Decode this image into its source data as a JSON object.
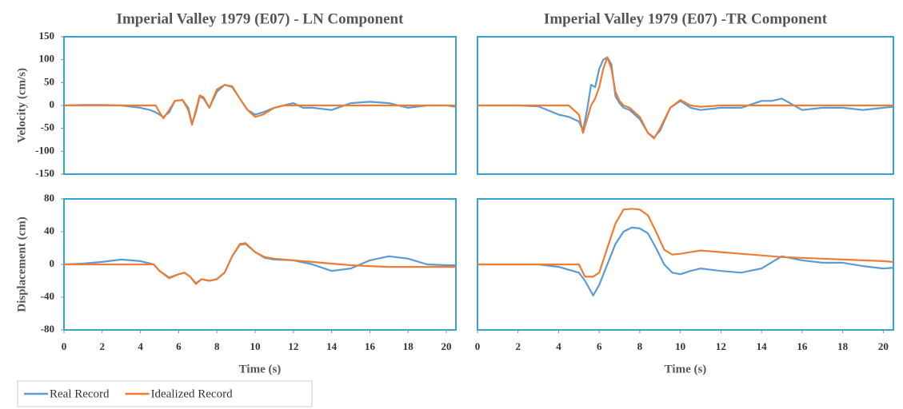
{
  "chart_data": [
    {
      "type": "line",
      "title": "Imperial Valley 1979 (E07) - LN Component",
      "ylabel": "Velocity (cm/s)",
      "x": [
        0,
        1,
        2,
        3,
        4,
        4.5,
        4.8,
        5,
        5.2,
        5.5,
        5.8,
        6.2,
        6.5,
        6.7,
        6.9,
        7.1,
        7.3,
        7.6,
        8,
        8.4,
        8.8,
        9.2,
        9.6,
        10,
        10.4,
        11,
        11.5,
        12,
        12.5,
        13,
        14,
        15,
        16,
        17,
        18,
        19,
        20,
        20.5
      ],
      "xlim": [
        0,
        20.5
      ],
      "ylim": [
        -150,
        150
      ],
      "yticks": [
        -150,
        -100,
        -50,
        0,
        50,
        100,
        150
      ],
      "series": [
        {
          "name": "Real Record",
          "color": "#5b9bd5",
          "values": [
            0,
            1,
            1,
            0,
            -5,
            -10,
            -15,
            -20,
            -25,
            -15,
            10,
            12,
            -5,
            -40,
            -15,
            20,
            15,
            -5,
            30,
            45,
            40,
            15,
            -10,
            -20,
            -15,
            -5,
            0,
            5,
            -5,
            -5,
            -10,
            5,
            8,
            5,
            -5,
            0,
            0,
            -3
          ]
        },
        {
          "name": "Idealized Record",
          "color": "#ed7d31",
          "values": [
            0,
            0,
            0,
            0,
            0,
            0,
            0,
            -15,
            -28,
            -10,
            10,
            12,
            -10,
            -42,
            -10,
            22,
            18,
            -5,
            35,
            45,
            42,
            15,
            -10,
            -25,
            -20,
            -5,
            0,
            0,
            0,
            0,
            0,
            0,
            0,
            0,
            0,
            0,
            0,
            0
          ]
        }
      ]
    },
    {
      "type": "line",
      "title": "Imperial Valley 1979 (E07) -TR Component",
      "x": [
        0,
        1,
        2,
        3,
        4,
        4.5,
        5,
        5.2,
        5.4,
        5.6,
        5.8,
        6,
        6.2,
        6.4,
        6.6,
        6.8,
        7,
        7.2,
        7.5,
        8,
        8.4,
        8.7,
        9,
        9.5,
        10,
        10.5,
        11,
        12,
        13,
        14,
        14.5,
        15,
        16,
        17,
        18,
        19,
        20,
        20.5
      ],
      "xlim": [
        0,
        20.5
      ],
      "ylim": [
        -150,
        150
      ],
      "series": [
        {
          "color": "#5b9bd5",
          "values": [
            0,
            0,
            0,
            -2,
            -20,
            -25,
            -35,
            -55,
            -10,
            45,
            40,
            80,
            100,
            105,
            90,
            20,
            5,
            -5,
            -10,
            -30,
            -60,
            -70,
            -55,
            -5,
            10,
            -5,
            -10,
            -5,
            -5,
            10,
            10,
            15,
            -10,
            -5,
            -5,
            -10,
            -5,
            -3
          ]
        },
        {
          "color": "#ed7d31",
          "values": [
            0,
            0,
            0,
            0,
            0,
            0,
            -20,
            -60,
            -30,
            0,
            15,
            40,
            80,
            105,
            80,
            30,
            10,
            0,
            -5,
            -25,
            -60,
            -72,
            -50,
            -5,
            12,
            0,
            -3,
            0,
            0,
            0,
            0,
            0,
            0,
            0,
            0,
            0,
            0,
            0
          ]
        }
      ]
    },
    {
      "type": "line",
      "ylabel": "Displacement (cm)",
      "xlabel": "Time (s)",
      "x": [
        0,
        1,
        2,
        3,
        4,
        4.7,
        5,
        5.5,
        6,
        6.3,
        6.6,
        6.9,
        7.2,
        7.6,
        8,
        8.4,
        8.8,
        9.2,
        9.5,
        10,
        10.5,
        11,
        12,
        13,
        14,
        15,
        16,
        17,
        18,
        19,
        20,
        20.5
      ],
      "xlim": [
        0,
        20.5
      ],
      "xticks": [
        0,
        2,
        4,
        6,
        8,
        10,
        12,
        14,
        16,
        18,
        20
      ],
      "ylim": [
        -80,
        80
      ],
      "yticks": [
        -80,
        -40,
        0,
        40,
        80
      ],
      "series": [
        {
          "color": "#5b9bd5",
          "values": [
            0,
            1,
            3,
            6,
            4,
            0,
            -8,
            -16,
            -12,
            -10,
            -15,
            -23,
            -18,
            -20,
            -18,
            -10,
            10,
            24,
            25,
            15,
            8,
            6,
            5,
            0,
            -8,
            -5,
            5,
            10,
            7,
            0,
            -1,
            -1
          ]
        },
        {
          "color": "#ed7d31",
          "values": [
            0,
            0,
            0,
            0,
            0,
            0,
            -8,
            -17,
            -12,
            -10,
            -15,
            -24,
            -18,
            -20,
            -18,
            -10,
            10,
            25,
            26,
            15,
            9,
            7,
            5,
            3,
            1,
            -1,
            -2,
            -3,
            -3,
            -3,
            -3,
            -3
          ]
        }
      ]
    },
    {
      "type": "line",
      "xlabel": "Time (s)",
      "x": [
        0,
        1,
        2,
        3,
        4,
        5,
        5.3,
        5.7,
        6,
        6.4,
        6.8,
        7.2,
        7.6,
        8,
        8.4,
        8.8,
        9.2,
        9.6,
        10,
        10.5,
        11,
        12,
        13,
        14,
        15,
        16,
        17,
        18,
        19,
        20,
        20.5
      ],
      "xlim": [
        0,
        20.5
      ],
      "xticks": [
        0,
        2,
        4,
        6,
        8,
        10,
        12,
        14,
        16,
        18,
        20
      ],
      "ylim": [
        -80,
        80
      ],
      "series": [
        {
          "color": "#5b9bd5",
          "values": [
            0,
            0,
            0,
            0,
            -3,
            -10,
            -20,
            -38,
            -25,
            0,
            25,
            40,
            45,
            44,
            38,
            20,
            0,
            -10,
            -12,
            -8,
            -5,
            -8,
            -10,
            -5,
            10,
            5,
            2,
            2,
            -2,
            -5,
            -4
          ]
        },
        {
          "color": "#ed7d31",
          "values": [
            0,
            0,
            0,
            0,
            0,
            0,
            -15,
            -15,
            -10,
            20,
            50,
            67,
            68,
            67,
            60,
            40,
            18,
            12,
            13,
            15,
            17,
            15,
            13,
            11,
            9,
            8,
            7,
            6,
            5,
            4,
            3
          ]
        }
      ]
    }
  ]
}
